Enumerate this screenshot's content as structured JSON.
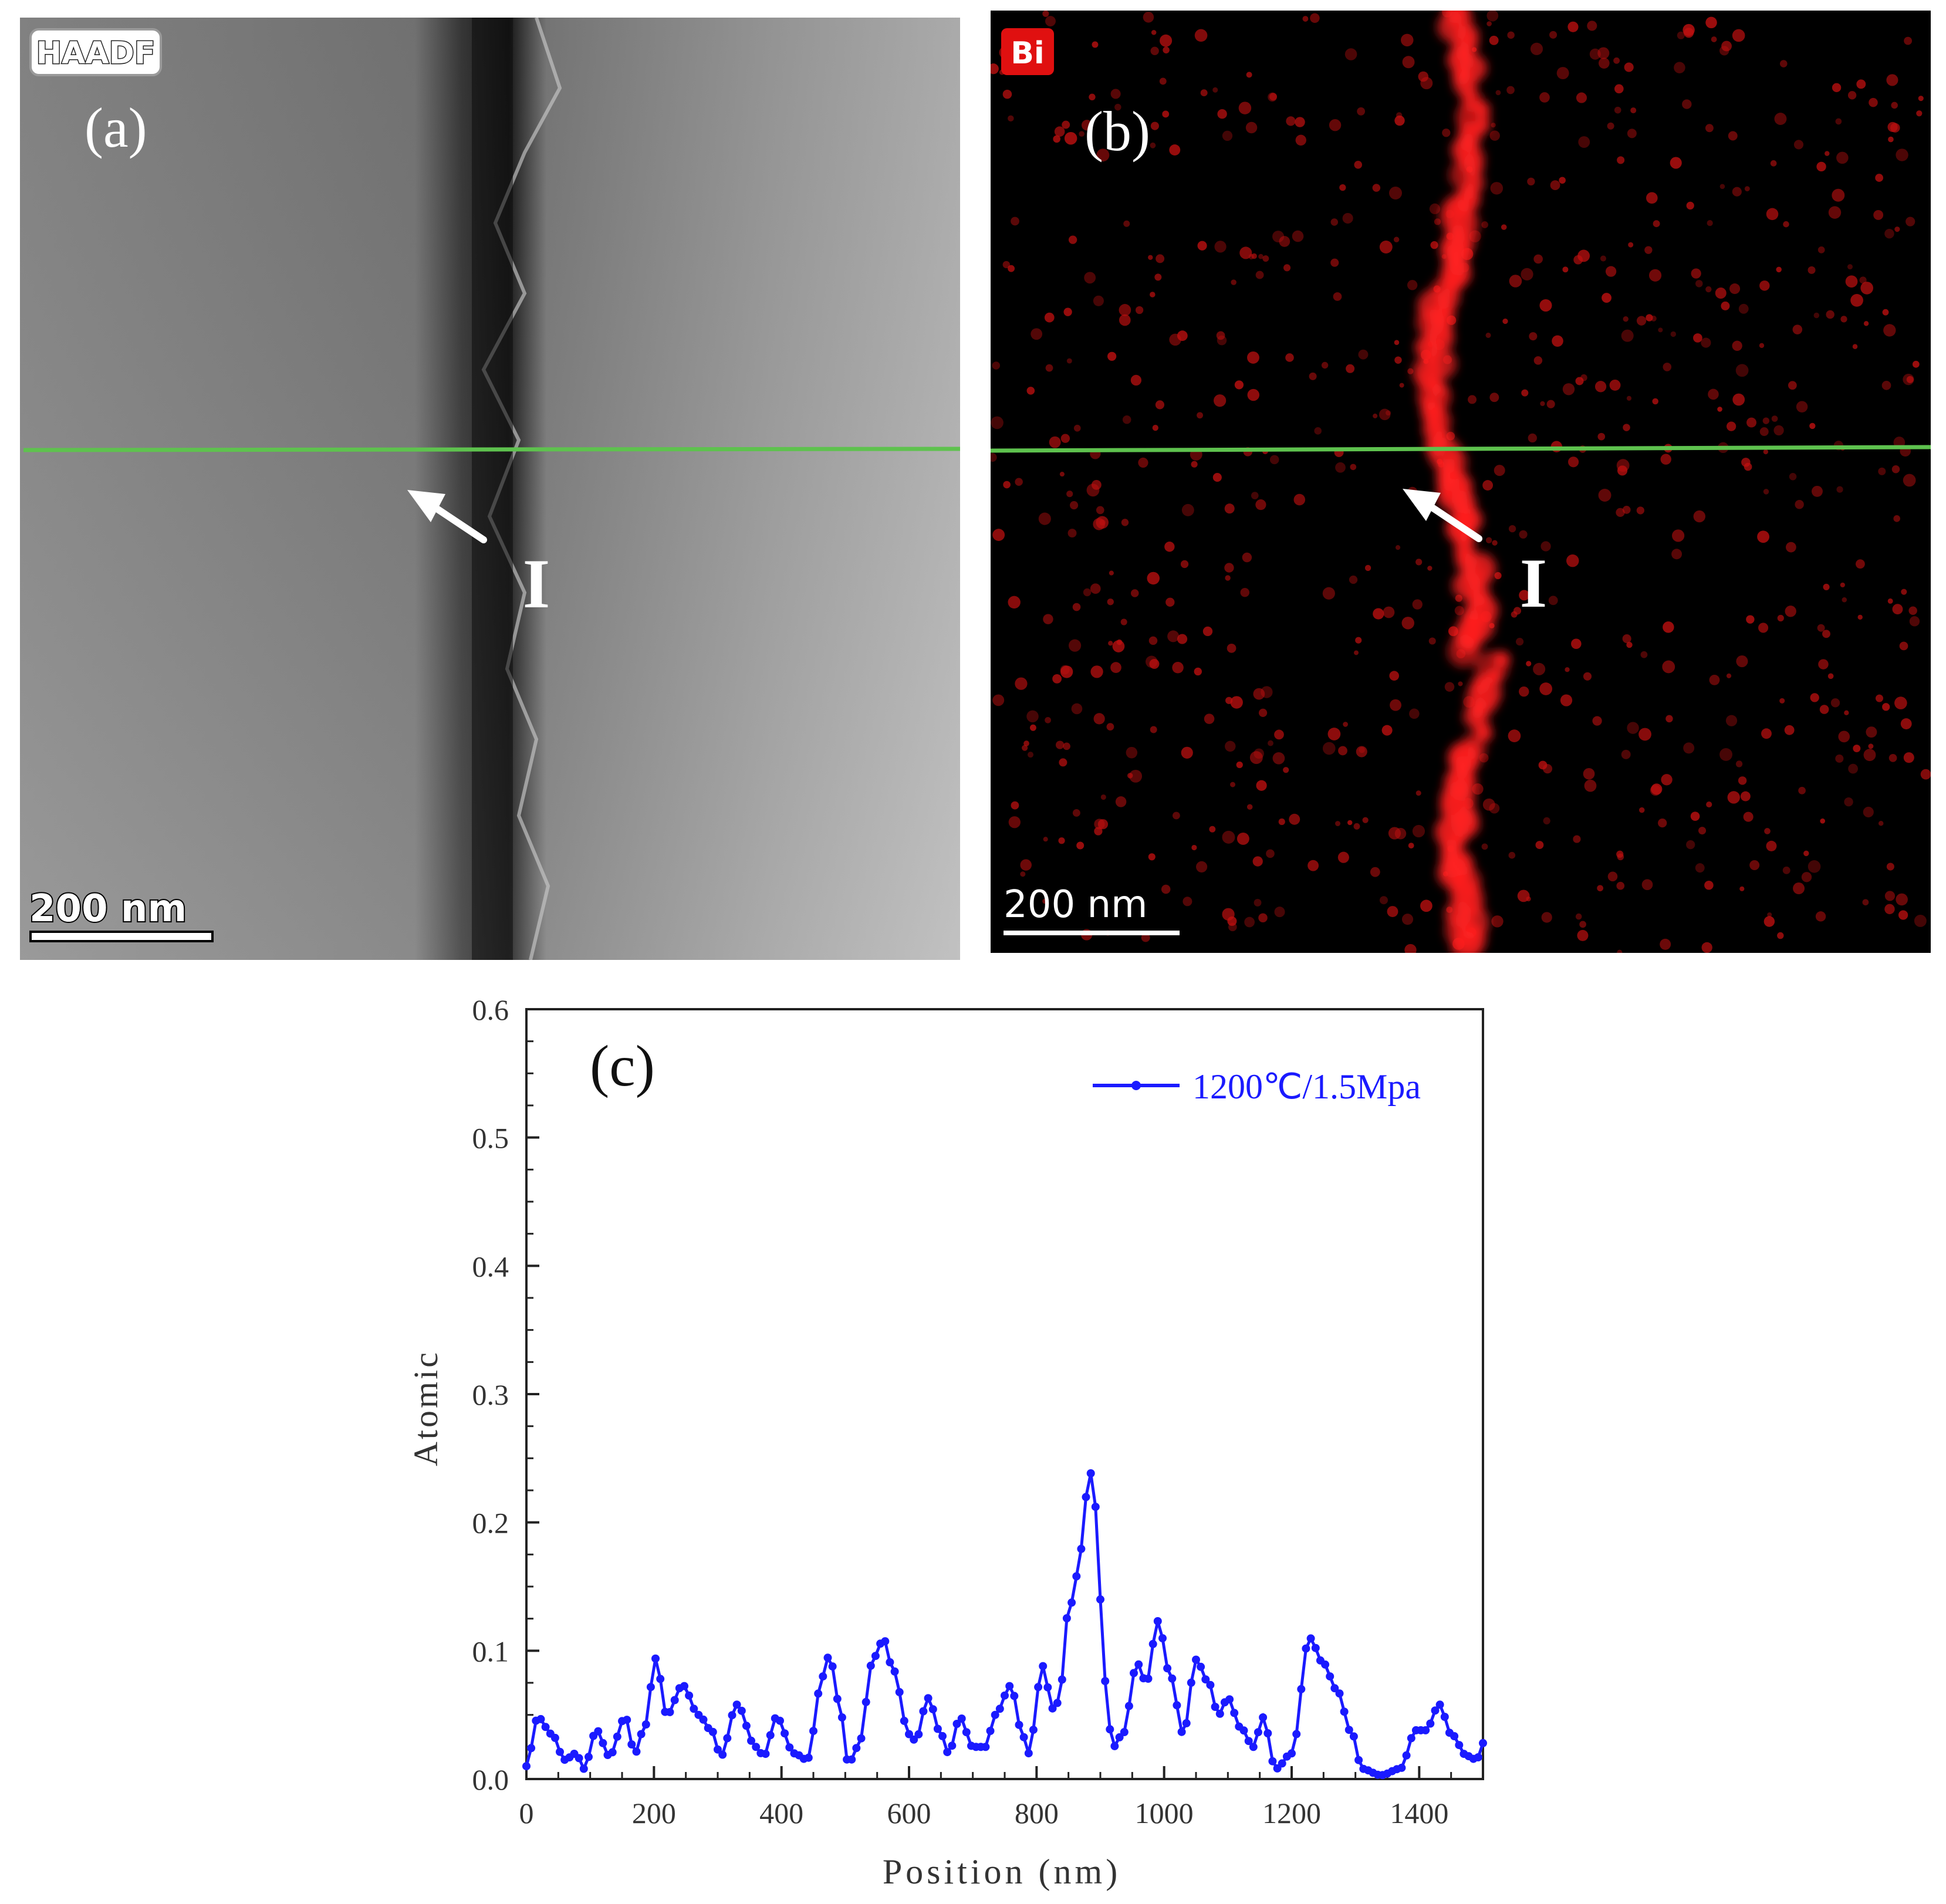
{
  "panel_a": {
    "badge": "HAADF",
    "label": "(a)",
    "marker": "I",
    "scale_bar": "200 nm",
    "line_color": "#5ec24e"
  },
  "panel_b": {
    "badge": "Bi",
    "label": "(b)",
    "marker": "I",
    "scale_bar": "200 nm",
    "line_color": "#5ec24e",
    "badge_color": "#e01010"
  },
  "chart_data": {
    "type": "line",
    "panel_label": "(c)",
    "xlabel": "Position (nm)",
    "ylabel": "Atomic",
    "xlim": [
      0,
      1500
    ],
    "ylim": [
      0,
      0.6
    ],
    "xticks": [
      "0",
      "200",
      "400",
      "600",
      "800",
      "1000",
      "1200",
      "1400"
    ],
    "yticks": [
      "0.0",
      "0.1",
      "0.2",
      "0.3",
      "0.4",
      "0.5",
      "0.6"
    ],
    "legend_position": "top-right",
    "series": [
      {
        "name": "1200℃/1.5Mpa",
        "color": "#1a1aff",
        "keypoints": [
          [
            0,
            0.01
          ],
          [
            18,
            0.048
          ],
          [
            40,
            0.035
          ],
          [
            60,
            0.015
          ],
          [
            78,
            0.02
          ],
          [
            90,
            0.008
          ],
          [
            110,
            0.038
          ],
          [
            130,
            0.018
          ],
          [
            155,
            0.048
          ],
          [
            170,
            0.02
          ],
          [
            185,
            0.04
          ],
          [
            203,
            0.094
          ],
          [
            220,
            0.05
          ],
          [
            245,
            0.073
          ],
          [
            270,
            0.05
          ],
          [
            290,
            0.038
          ],
          [
            305,
            0.018
          ],
          [
            330,
            0.058
          ],
          [
            360,
            0.025
          ],
          [
            372,
            0.018
          ],
          [
            392,
            0.048
          ],
          [
            420,
            0.02
          ],
          [
            440,
            0.015
          ],
          [
            465,
            0.08
          ],
          [
            475,
            0.097
          ],
          [
            490,
            0.06
          ],
          [
            505,
            0.012
          ],
          [
            520,
            0.025
          ],
          [
            545,
            0.095
          ],
          [
            560,
            0.109
          ],
          [
            575,
            0.085
          ],
          [
            600,
            0.035
          ],
          [
            610,
            0.03
          ],
          [
            630,
            0.063
          ],
          [
            650,
            0.035
          ],
          [
            662,
            0.02
          ],
          [
            680,
            0.048
          ],
          [
            700,
            0.025
          ],
          [
            720,
            0.025
          ],
          [
            735,
            0.05
          ],
          [
            760,
            0.073
          ],
          [
            775,
            0.04
          ],
          [
            787,
            0.02
          ],
          [
            810,
            0.088
          ],
          [
            825,
            0.055
          ],
          [
            835,
            0.06
          ],
          [
            850,
            0.13
          ],
          [
            865,
            0.16
          ],
          [
            878,
            0.22
          ],
          [
            888,
            0.243
          ],
          [
            895,
            0.2
          ],
          [
            905,
            0.08
          ],
          [
            920,
            0.025
          ],
          [
            935,
            0.035
          ],
          [
            958,
            0.09
          ],
          [
            972,
            0.075
          ],
          [
            990,
            0.123
          ],
          [
            1010,
            0.08
          ],
          [
            1030,
            0.035
          ],
          [
            1050,
            0.093
          ],
          [
            1070,
            0.075
          ],
          [
            1085,
            0.05
          ],
          [
            1100,
            0.063
          ],
          [
            1120,
            0.04
          ],
          [
            1140,
            0.025
          ],
          [
            1155,
            0.048
          ],
          [
            1175,
            0.008
          ],
          [
            1200,
            0.02
          ],
          [
            1228,
            0.11
          ],
          [
            1250,
            0.09
          ],
          [
            1270,
            0.07
          ],
          [
            1295,
            0.035
          ],
          [
            1310,
            0.008
          ],
          [
            1340,
            0.003
          ],
          [
            1370,
            0.008
          ],
          [
            1395,
            0.038
          ],
          [
            1410,
            0.038
          ],
          [
            1432,
            0.058
          ],
          [
            1450,
            0.035
          ],
          [
            1475,
            0.018
          ],
          [
            1490,
            0.015
          ],
          [
            1500,
            0.028
          ]
        ]
      }
    ]
  }
}
